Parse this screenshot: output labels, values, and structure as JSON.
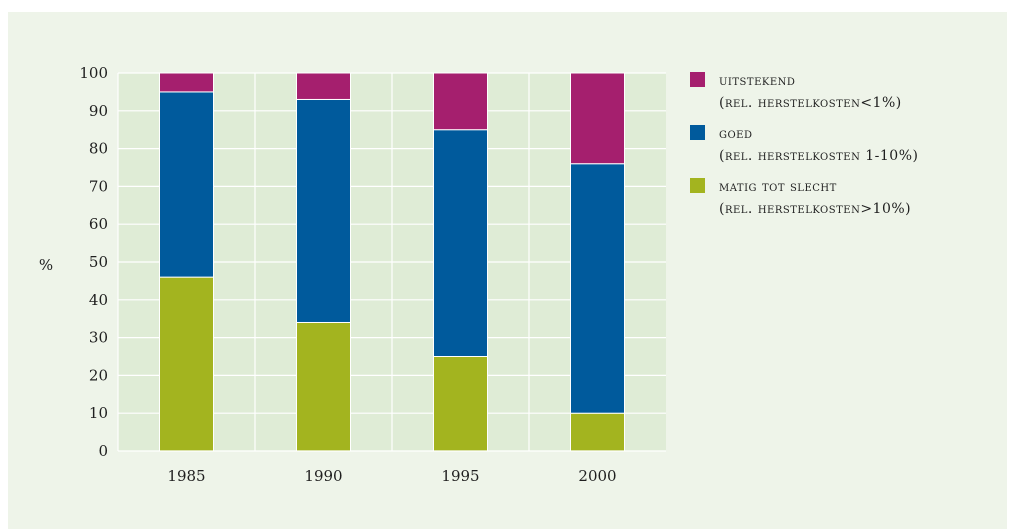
{
  "chart_data": {
    "type": "bar",
    "stacked": true,
    "title": "",
    "xlabel": "",
    "ylabel": "%",
    "ylim": [
      0,
      100
    ],
    "yticks": [
      0,
      10,
      20,
      30,
      40,
      50,
      60,
      70,
      80,
      90,
      100
    ],
    "categories": [
      "1985",
      "1990",
      "1995",
      "2000"
    ],
    "grid": true,
    "legend_position": "right",
    "series": [
      {
        "key": "matig",
        "name": "matig tot slecht",
        "sub": "(rel. herstelkosten>10%)",
        "color": "#a3b41f",
        "values": [
          46,
          34,
          25,
          10
        ]
      },
      {
        "key": "goed",
        "name": "goed",
        "sub": "(rel. herstelkosten 1-10%)",
        "color": "#005a9c",
        "values": [
          49,
          59,
          60,
          66
        ]
      },
      {
        "key": "uitstekend",
        "name": "uitstekend",
        "sub": "(rel. herstelkosten<1%)",
        "color": "#a51f6e",
        "values": [
          5,
          7,
          15,
          24
        ]
      }
    ],
    "legend_order": [
      "uitstekend",
      "goed",
      "matig"
    ]
  }
}
